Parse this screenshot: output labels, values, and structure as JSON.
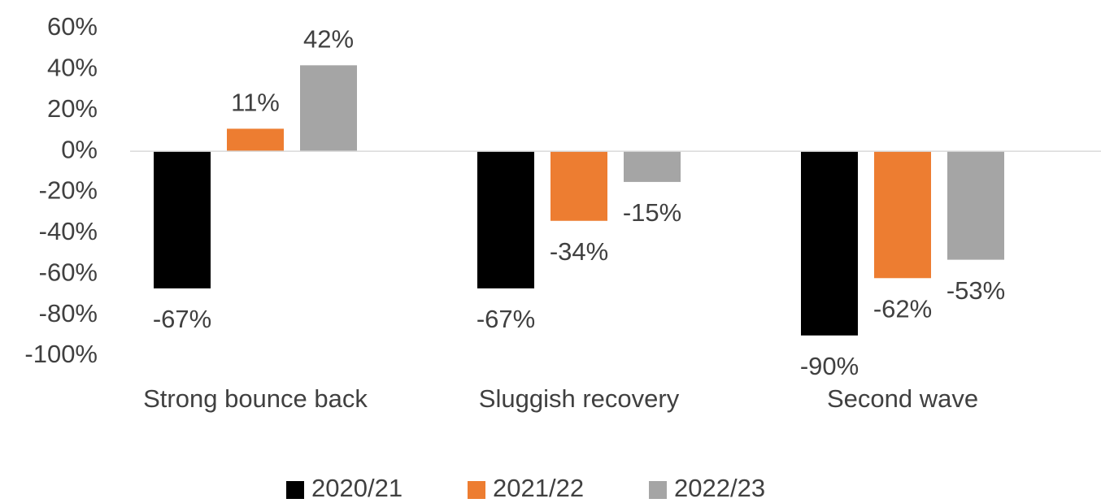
{
  "chart_data": {
    "type": "bar",
    "categories": [
      "Strong bounce back",
      "Sluggish recovery",
      "Second wave"
    ],
    "series": [
      {
        "name": "2020/21",
        "color": "#000000",
        "values": [
          -67,
          -67,
          -90
        ],
        "value_labels": [
          "-67%",
          "-67%",
          "-90%"
        ]
      },
      {
        "name": "2021/22",
        "color": "#ED7D31",
        "values": [
          11,
          -34,
          -62
        ],
        "value_labels": [
          "11%",
          "-34%",
          "-62%"
        ]
      },
      {
        "name": "2022/23",
        "color": "#A5A5A5",
        "values": [
          42,
          -15,
          -53
        ],
        "value_labels": [
          "42%",
          "-15%",
          "-53%"
        ]
      }
    ],
    "ylim": [
      -100,
      60
    ],
    "yticks": [
      {
        "value": 60,
        "label": "60%"
      },
      {
        "value": 40,
        "label": "40%"
      },
      {
        "value": 20,
        "label": "20%"
      },
      {
        "value": 0,
        "label": "0%"
      },
      {
        "value": -20,
        "label": "-20%"
      },
      {
        "value": -40,
        "label": "-40%"
      },
      {
        "value": -60,
        "label": "-60%"
      },
      {
        "value": -80,
        "label": "-80%"
      },
      {
        "value": -100,
        "label": "-100%"
      }
    ],
    "grid": false,
    "legend": "bottom"
  }
}
